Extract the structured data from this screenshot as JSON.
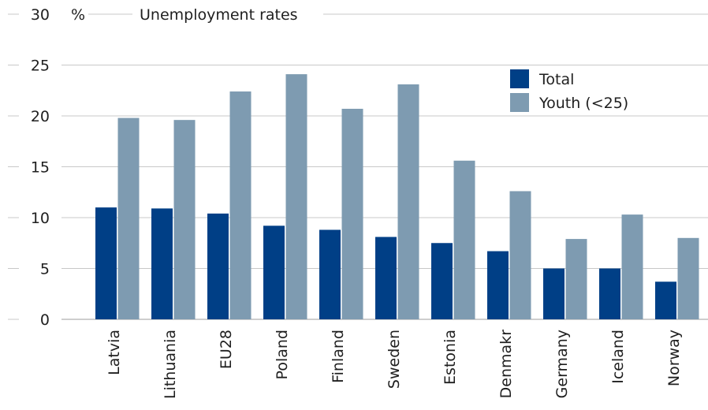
{
  "chart_data": {
    "type": "bar",
    "title": "Unemployment rates",
    "ylabel": "%",
    "xlabel": "",
    "ylim": [
      0,
      30
    ],
    "yticks": [
      0,
      5,
      10,
      15,
      20,
      25,
      30
    ],
    "grid": true,
    "legend_position": "top-right",
    "categories": [
      "Latvia",
      "Lithuania",
      "EU28",
      "Poland",
      "Finland",
      "Sweden",
      "Estonia",
      "Denmakr",
      "Germany",
      "Iceland",
      "Norway"
    ],
    "series": [
      {
        "name": "Total",
        "color": "#003f86",
        "values": [
          11.0,
          10.9,
          10.4,
          9.2,
          8.8,
          8.1,
          7.5,
          6.7,
          5.0,
          5.0,
          3.7
        ]
      },
      {
        "name": "Youth (<25)",
        "color": "#7e9bb1",
        "values": [
          19.8,
          19.6,
          22.4,
          24.1,
          20.7,
          23.1,
          15.6,
          12.6,
          7.9,
          10.3,
          8.0
        ]
      }
    ]
  }
}
